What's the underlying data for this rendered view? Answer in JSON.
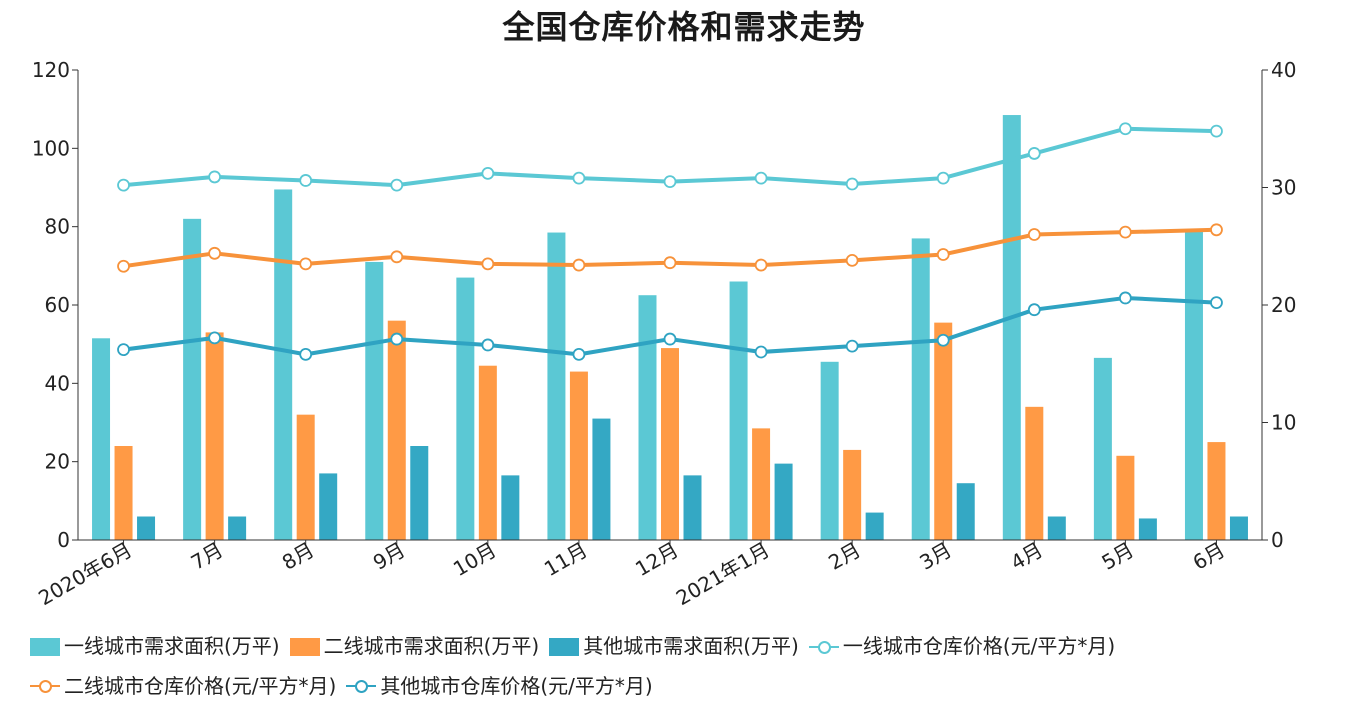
{
  "chart_data": {
    "type": "bar+line",
    "title": "全国仓库价格和需求走势",
    "categories": [
      "2020年6月",
      "7月",
      "8月",
      "9月",
      "10月",
      "11月",
      "12月",
      "2021年1月",
      "2月",
      "3月",
      "4月",
      "5月",
      "6月"
    ],
    "y_left": {
      "range": [
        0,
        120
      ],
      "ticks": [
        "0",
        "20",
        "40",
        "60",
        "80",
        "100",
        "120"
      ]
    },
    "y_right": {
      "range": [
        0,
        40
      ],
      "ticks": [
        "0",
        "10",
        "20",
        "30",
        "40"
      ]
    },
    "grid": false,
    "legend_position": "bottom",
    "bar_series": [
      {
        "name": "一线城市需求面积(万平)",
        "color": "#5BC8D4",
        "values": [
          51.5,
          82,
          89.5,
          71,
          67,
          78.5,
          62.5,
          66,
          45.5,
          77,
          108.5,
          46.5,
          79
        ]
      },
      {
        "name": "二线城市需求面积(万平)",
        "color": "#FF9A45",
        "values": [
          24,
          53,
          32,
          56,
          44.5,
          43,
          49,
          28.5,
          23,
          55.5,
          34,
          21.5,
          25
        ]
      },
      {
        "name": "其他城市需求面积(万平)",
        "color": "#34A8C4",
        "values": [
          6,
          6,
          17,
          24,
          16.5,
          31,
          16.5,
          19.5,
          7,
          14.5,
          6,
          5.5,
          6
        ]
      }
    ],
    "line_series": [
      {
        "name": "一线城市仓库价格(元/平方*月)",
        "color": "#5BC8D4",
        "values": [
          30.2,
          30.9,
          30.6,
          30.2,
          31.2,
          30.8,
          30.5,
          30.8,
          30.3,
          30.8,
          32.9,
          35.0,
          34.8
        ]
      },
      {
        "name": "二线城市仓库价格(元/平方*月)",
        "color": "#F7923A",
        "values": [
          23.3,
          24.4,
          23.5,
          24.1,
          23.5,
          23.4,
          23.6,
          23.4,
          23.8,
          24.3,
          26.0,
          26.2,
          26.4
        ]
      },
      {
        "name": "其他城市仓库价格(元/平方*月)",
        "color": "#2FA3C2",
        "values": [
          16.2,
          17.2,
          15.8,
          17.1,
          16.6,
          15.8,
          17.1,
          16.0,
          16.5,
          17.0,
          19.6,
          20.6,
          20.2
        ]
      }
    ]
  }
}
